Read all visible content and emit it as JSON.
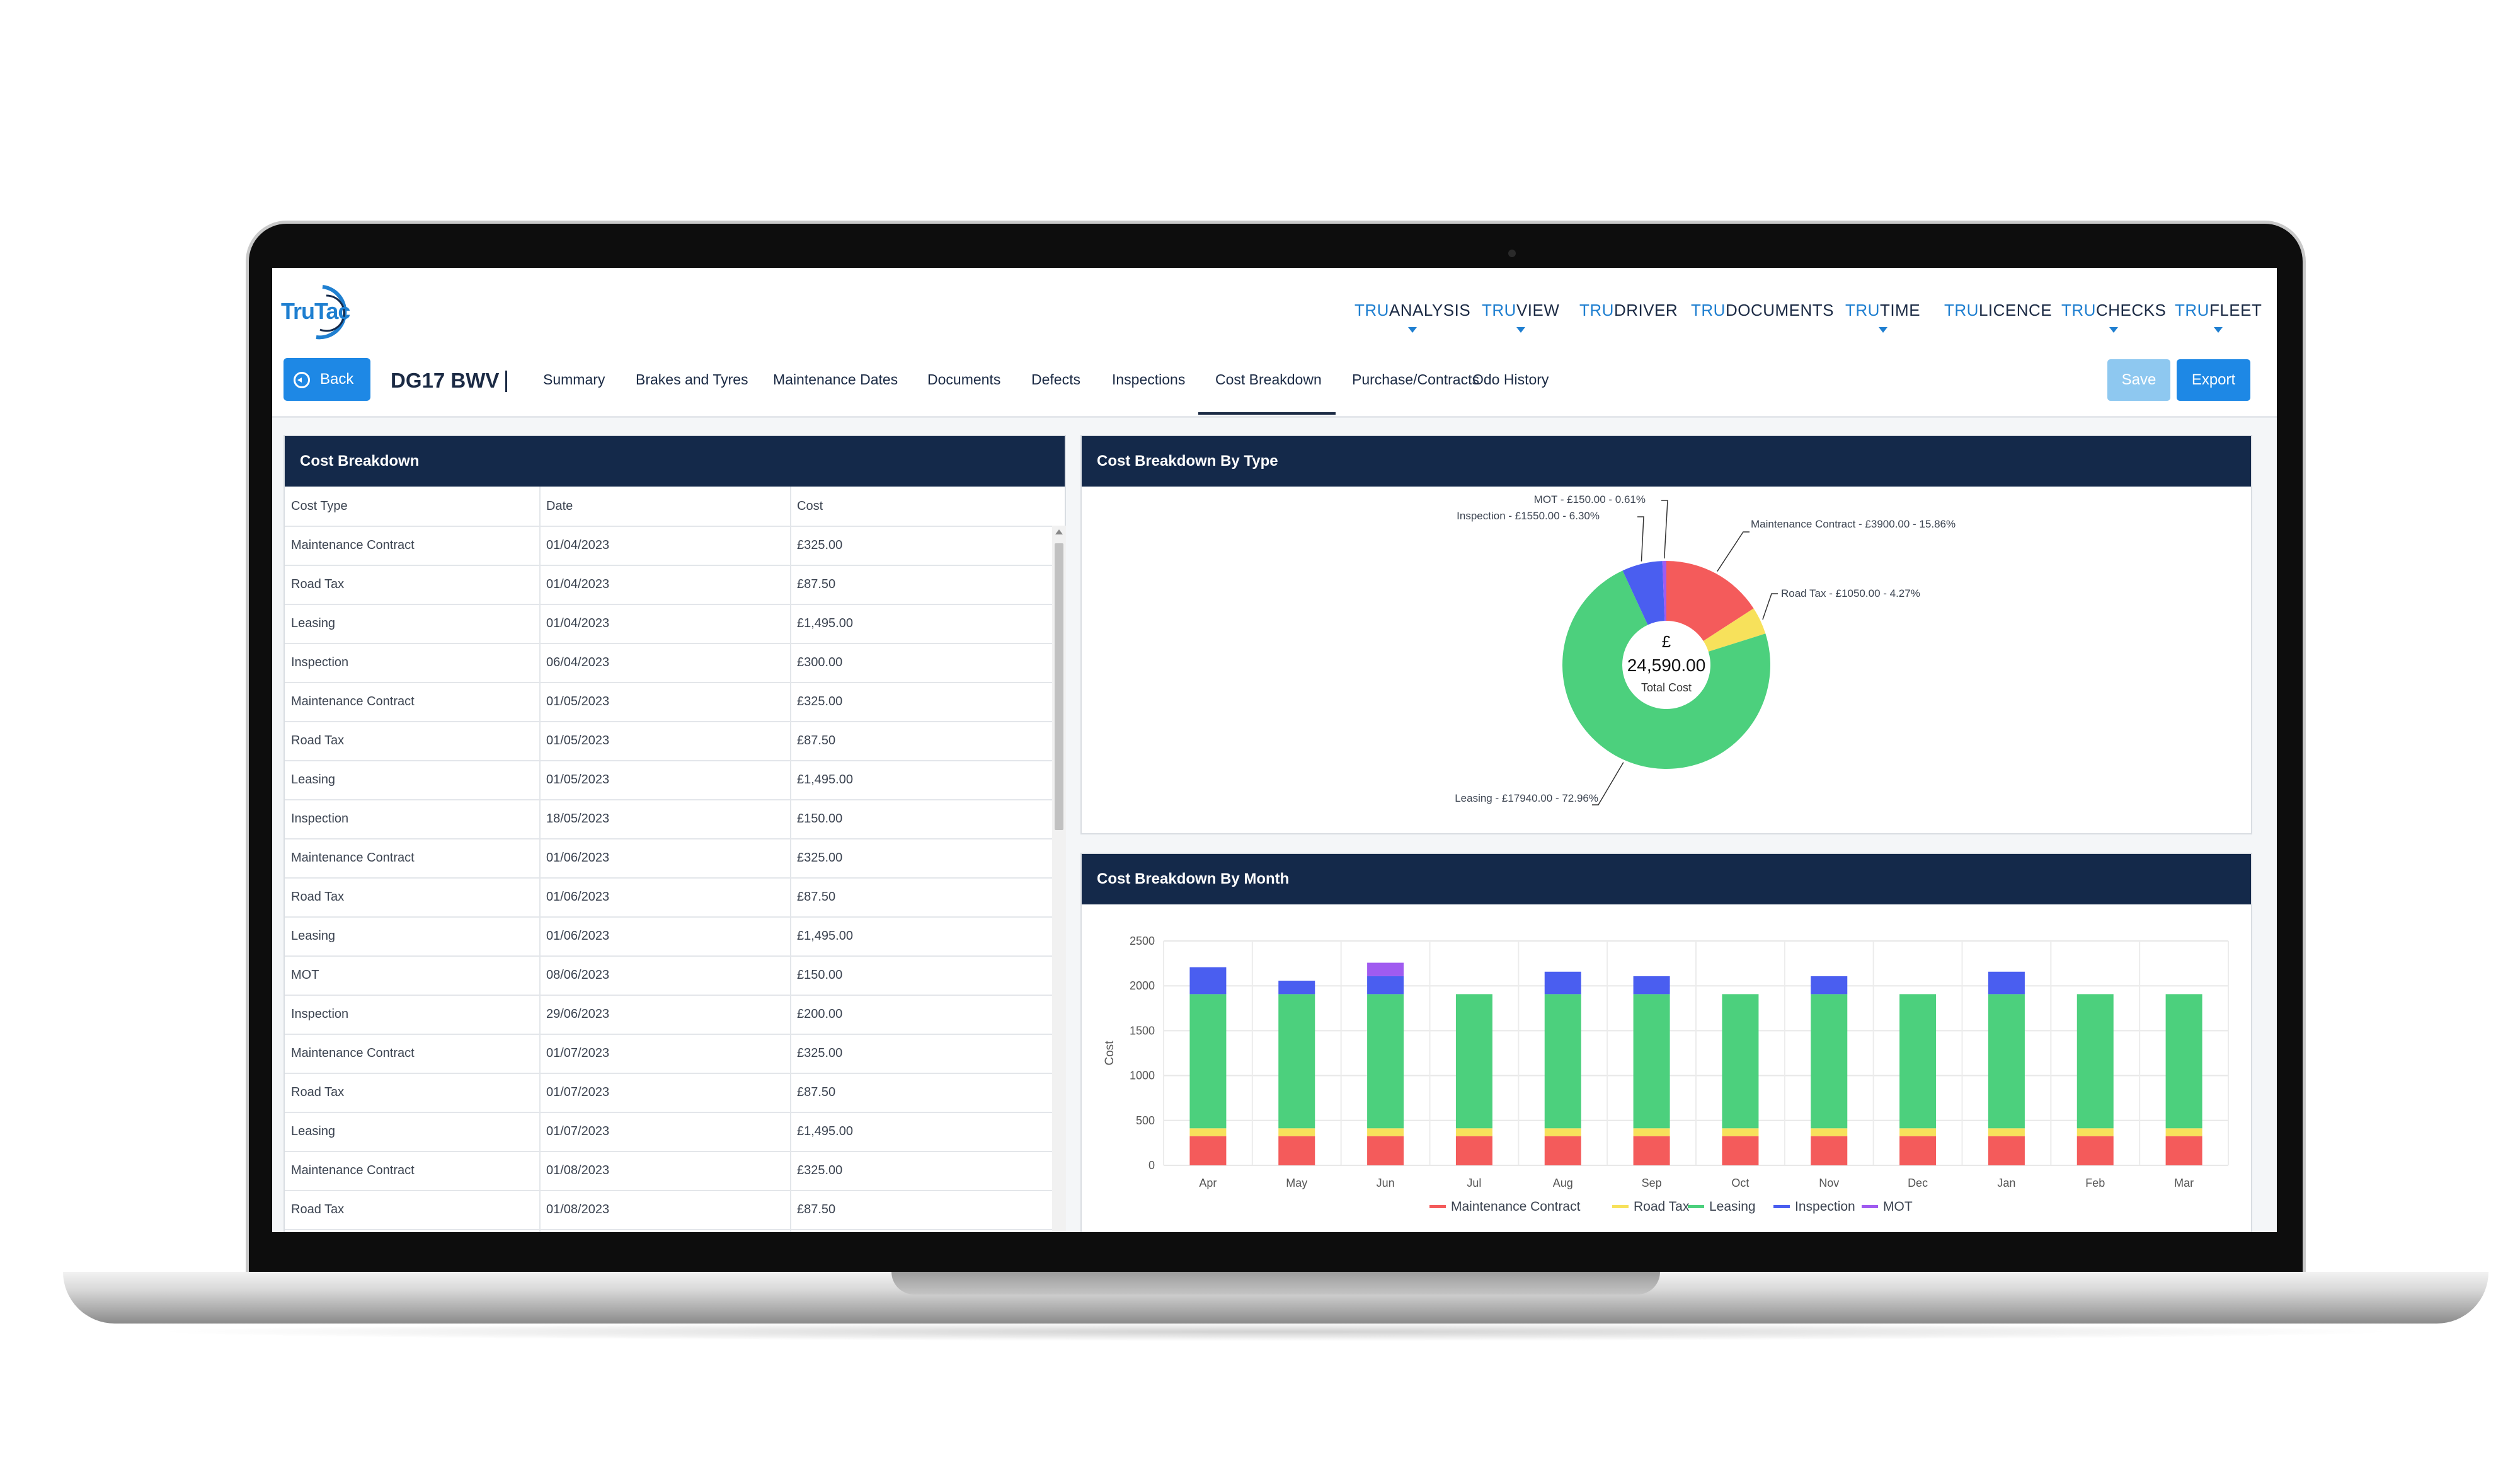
{
  "header": {
    "logo_text": "TruTac",
    "nav": [
      {
        "pre": "TRU",
        "label": "ANALYSIS",
        "chevron": true
      },
      {
        "pre": "TRU",
        "label": "VIEW",
        "chevron": true
      },
      {
        "pre": "TRU",
        "label": "DRIVER",
        "chevron": false
      },
      {
        "pre": "TRU",
        "label": "DOCUMENTS",
        "chevron": false
      },
      {
        "pre": "TRU",
        "label": "TIME",
        "chevron": true
      },
      {
        "pre": "TRU",
        "label": "LICENCE",
        "chevron": false
      },
      {
        "pre": "TRU",
        "label": "CHECKS",
        "chevron": true
      },
      {
        "pre": "TRU",
        "label": "FLEET",
        "chevron": true
      }
    ]
  },
  "subnav": {
    "back_label": "Back",
    "vehicle_reg": "DG17 BWV",
    "tabs": [
      "Summary",
      "Brakes and Tyres",
      "Maintenance Dates",
      "Documents",
      "Defects",
      "Inspections",
      "Cost Breakdown",
      "Purchase/Contracts",
      "Odo History"
    ],
    "active_tab": "Cost Breakdown",
    "save_label": "Save",
    "export_label": "Export"
  },
  "cost_table": {
    "title": "Cost Breakdown",
    "columns": [
      "Cost Type",
      "Date",
      "Cost"
    ],
    "rows": [
      [
        "Maintenance Contract",
        "01/04/2023",
        "£325.00"
      ],
      [
        "Road Tax",
        "01/04/2023",
        "£87.50"
      ],
      [
        "Leasing",
        "01/04/2023",
        "£1,495.00"
      ],
      [
        "Inspection",
        "06/04/2023",
        "£300.00"
      ],
      [
        "Maintenance Contract",
        "01/05/2023",
        "£325.00"
      ],
      [
        "Road Tax",
        "01/05/2023",
        "£87.50"
      ],
      [
        "Leasing",
        "01/05/2023",
        "£1,495.00"
      ],
      [
        "Inspection",
        "18/05/2023",
        "£150.00"
      ],
      [
        "Maintenance Contract",
        "01/06/2023",
        "£325.00"
      ],
      [
        "Road Tax",
        "01/06/2023",
        "£87.50"
      ],
      [
        "Leasing",
        "01/06/2023",
        "£1,495.00"
      ],
      [
        "MOT",
        "08/06/2023",
        "£150.00"
      ],
      [
        "Inspection",
        "29/06/2023",
        "£200.00"
      ],
      [
        "Maintenance Contract",
        "01/07/2023",
        "£325.00"
      ],
      [
        "Road Tax",
        "01/07/2023",
        "£87.50"
      ],
      [
        "Leasing",
        "01/07/2023",
        "£1,495.00"
      ],
      [
        "Maintenance Contract",
        "01/08/2023",
        "£325.00"
      ],
      [
        "Road Tax",
        "01/08/2023",
        "£87.50"
      ]
    ]
  },
  "colors": {
    "maintenance": "#f45b5b",
    "roadtax": "#f7e15b",
    "leasing": "#4cd07d",
    "inspection": "#4a5ef0",
    "mot": "#a05bf0"
  },
  "chart_data": [
    {
      "type": "pie",
      "title": "Cost Breakdown By Type",
      "center_symbol": "£",
      "center_value": "24,590.00",
      "center_label": "Total Cost",
      "slices": [
        {
          "name": "Maintenance Contract",
          "value": 3900,
          "label": "Maintenance Contract - £3900.00 - 15.86%",
          "color": "#f45b5b"
        },
        {
          "name": "Road Tax",
          "value": 1050,
          "label": "Road Tax - £1050.00 - 4.27%",
          "color": "#f7e15b"
        },
        {
          "name": "Leasing",
          "value": 17940,
          "label": "Leasing - £17940.00 - 72.96%",
          "color": "#4cd07d"
        },
        {
          "name": "Inspection",
          "value": 1550,
          "label": "Inspection - £1550.00 - 6.30%",
          "color": "#4a5ef0"
        },
        {
          "name": "MOT",
          "value": 150,
          "label": "MOT - £150.00 - 0.61%",
          "color": "#a05bf0"
        }
      ]
    },
    {
      "type": "bar",
      "stacked": true,
      "title": "Cost Breakdown By Month",
      "ylabel": "Cost",
      "ylim": [
        0,
        2500
      ],
      "yticks": [
        0,
        500,
        1000,
        1500,
        2000,
        2500
      ],
      "categories": [
        "Apr",
        "May",
        "Jun",
        "Jul",
        "Aug",
        "Sep",
        "Oct",
        "Nov",
        "Dec",
        "Jan",
        "Feb",
        "Mar"
      ],
      "legend_position": "bottom",
      "series": [
        {
          "name": "Maintenance Contract",
          "color": "#f45b5b",
          "values": [
            325,
            325,
            325,
            325,
            325,
            325,
            325,
            325,
            325,
            325,
            325,
            325
          ]
        },
        {
          "name": "Road Tax",
          "color": "#f7e15b",
          "values": [
            87.5,
            87.5,
            87.5,
            87.5,
            87.5,
            87.5,
            87.5,
            87.5,
            87.5,
            87.5,
            87.5,
            87.5
          ]
        },
        {
          "name": "Leasing",
          "color": "#4cd07d",
          "values": [
            1495,
            1495,
            1495,
            1495,
            1495,
            1495,
            1495,
            1495,
            1495,
            1495,
            1495,
            1495
          ]
        },
        {
          "name": "Inspection",
          "color": "#4a5ef0",
          "values": [
            300,
            150,
            200,
            0,
            250,
            200,
            0,
            200,
            0,
            250,
            0,
            0
          ]
        },
        {
          "name": "MOT",
          "color": "#a05bf0",
          "values": [
            0,
            0,
            150,
            0,
            0,
            0,
            0,
            0,
            0,
            0,
            0,
            0
          ]
        }
      ]
    }
  ]
}
